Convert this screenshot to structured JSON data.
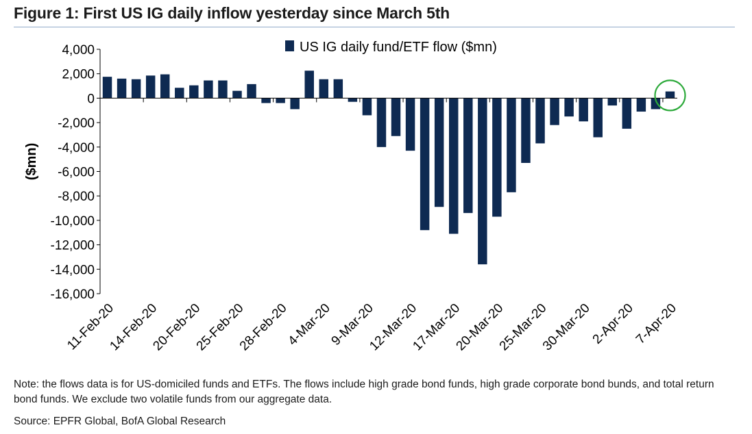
{
  "figure_title": "Figure 1: First US IG daily inflow yesterday since March 5th",
  "note": "Note: the flows data is for US-domiciled funds and ETFs. The flows include high grade bond funds, high grade corporate bond bunds, and total return bond funds. We exclude two volatile funds from our aggregate data.",
  "source": "Source: EPFR Global, BofA Global Research",
  "colors": {
    "bar": "#0e2a52",
    "highlight_circle": "#2eaa3c",
    "title_rule": "#8ea8c8"
  },
  "chart_data": {
    "type": "bar",
    "title": "",
    "ylabel": "($mn)",
    "xlabel": "",
    "ylim": [
      -16000,
      4000
    ],
    "yticks": [
      4000,
      2000,
      0,
      -2000,
      -4000,
      -6000,
      -8000,
      -10000,
      -12000,
      -14000,
      -16000
    ],
    "ytick_labels": [
      "4,000",
      "2,000",
      "0",
      "-2,000",
      "-4,000",
      "-6,000",
      "-8,000",
      "-10,000",
      "-12,000",
      "-14,000",
      "-16,000"
    ],
    "legend": {
      "label": "US IG daily fund/ETF flow ($mn)",
      "position": "top-center"
    },
    "grid": false,
    "x_tick_labels": [
      {
        "label": "11-Feb-20",
        "index": 0
      },
      {
        "label": "14-Feb-20",
        "index": 3
      },
      {
        "label": "20-Feb-20",
        "index": 6
      },
      {
        "label": "25-Feb-20",
        "index": 9
      },
      {
        "label": "28-Feb-20",
        "index": 12
      },
      {
        "label": "4-Mar-20",
        "index": 15
      },
      {
        "label": "9-Mar-20",
        "index": 18
      },
      {
        "label": "12-Mar-20",
        "index": 21
      },
      {
        "label": "17-Mar-20",
        "index": 24
      },
      {
        "label": "20-Mar-20",
        "index": 27
      },
      {
        "label": "25-Mar-20",
        "index": 30
      },
      {
        "label": "30-Mar-20",
        "index": 33
      },
      {
        "label": "2-Apr-20",
        "index": 36
      },
      {
        "label": "7-Apr-20",
        "index": 39
      }
    ],
    "series": [
      {
        "name": "US IG daily fund/ETF flow ($mn)",
        "values": [
          1750,
          1600,
          1550,
          1850,
          1950,
          850,
          1050,
          1450,
          1450,
          600,
          1150,
          -400,
          -400,
          -900,
          2250,
          1550,
          1550,
          -300,
          -1400,
          -4000,
          -3100,
          -4300,
          -10800,
          -8900,
          -11100,
          -9400,
          -13600,
          -9700,
          -7700,
          -5300,
          -3700,
          -2200,
          -1500,
          -1900,
          -3200,
          -600,
          -2500,
          -1100,
          -900,
          550
        ]
      }
    ],
    "highlight": {
      "index": 39,
      "shape": "circle"
    }
  }
}
